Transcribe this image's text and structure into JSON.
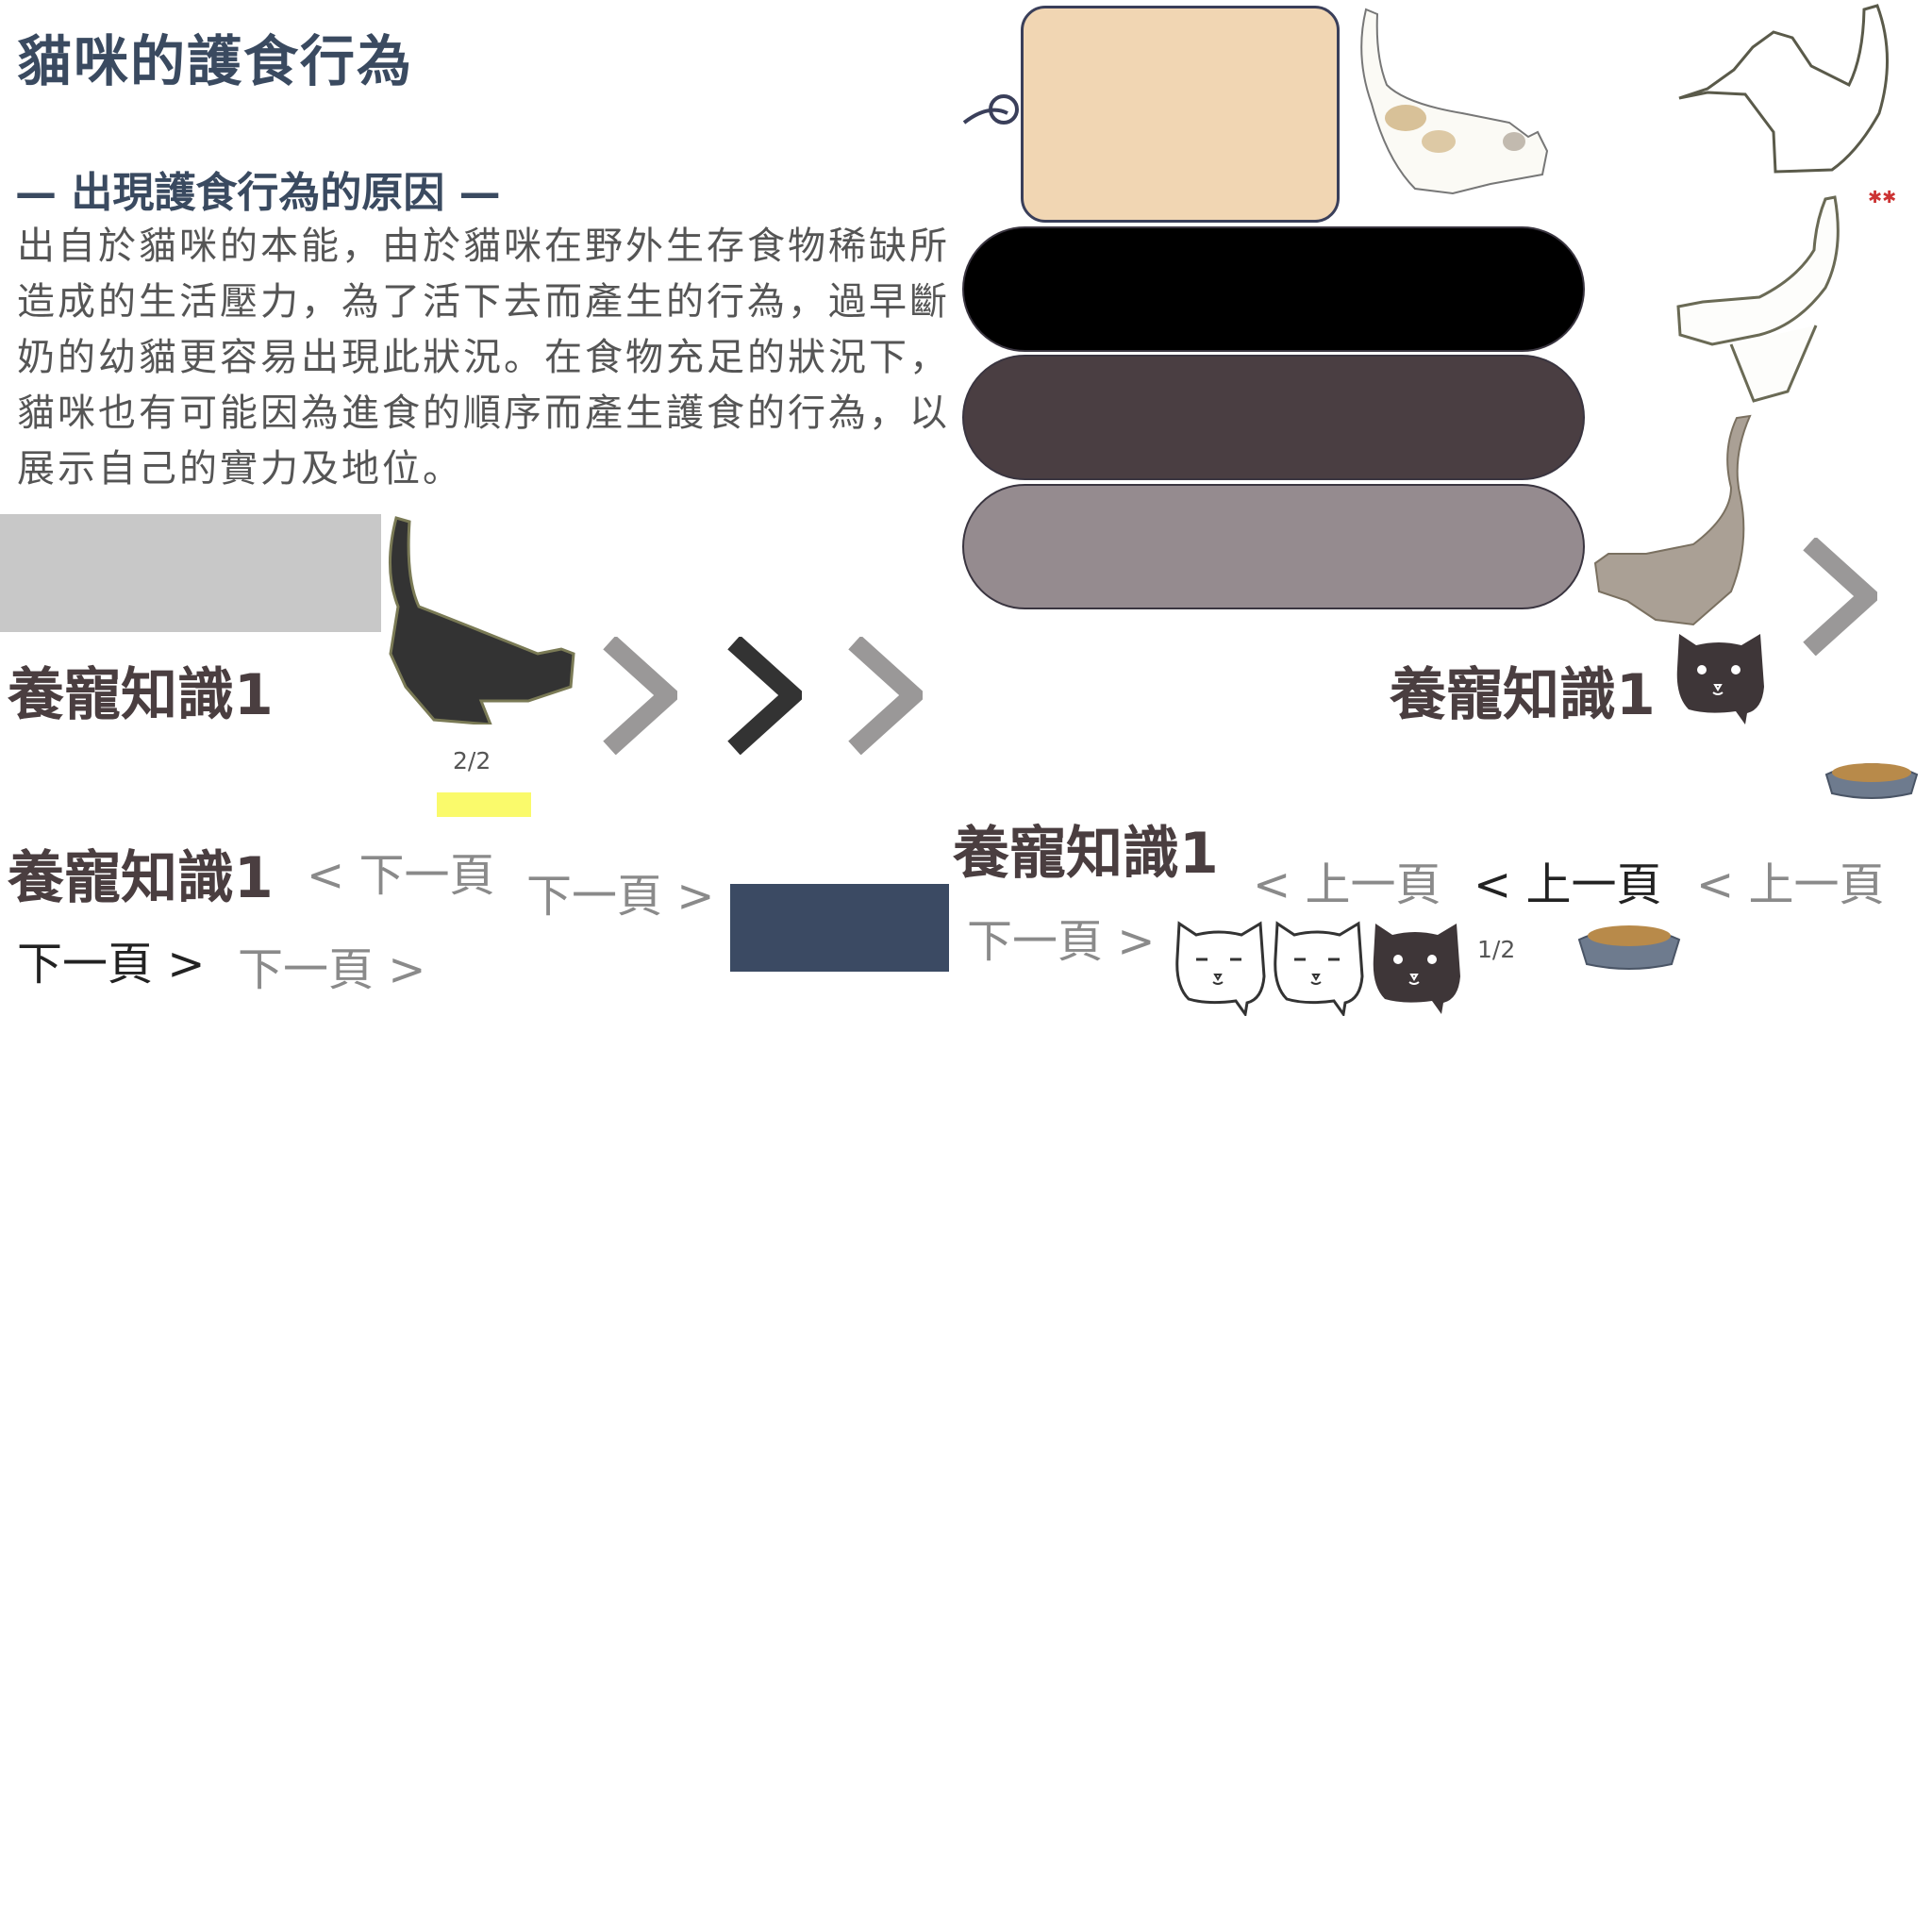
{
  "title": "貓咪的護食行為",
  "section_heading": "— 出現護食行為的原因 —",
  "body_lines": [
    "出自於貓咪的本能，由於貓咪在野外生存食物稀缺所",
    "造成的生活壓力，為了活下去而產生的行為，過早斷",
    "奶的幼貓更容易出現此狀況。在食物充足的狀況下，",
    "貓咪也有可能因為進食的順序而產生護食的行為，以",
    "展示自己的實力及地位。"
  ],
  "knowledge_title": "養寵知識1",
  "nav": {
    "prev_left": "< 下一頁",
    "next_grey": "下一頁 >",
    "next_dark": "下一頁 >",
    "next_light": "下一頁 >",
    "next_right": "下一頁 >",
    "prev_grey": "< 上一頁",
    "prev_dark": "< 上一頁",
    "prev_light": "< 上一頁"
  },
  "page_indicators": {
    "left": "2/2",
    "right": "1/2"
  },
  "colors": {
    "title": "#3a4a60",
    "card_fill": "#f1d6b3",
    "pill_black": "#000000",
    "pill_dark": "#4a3e42",
    "pill_grey": "#958b8f",
    "grey_block": "#c8c8c8",
    "yellow_bar": "#fafa6b",
    "navy_block": "#3b4a63",
    "chevron_grey": "#9a9898",
    "chevron_dark": "#333333"
  },
  "icons": [
    "walking-cat-icon",
    "hissing-cat-icon",
    "black-cat-silhouette-icon",
    "grey-cat-icon",
    "cat-face-white-icon",
    "cat-face-black-icon",
    "food-bowl-icon",
    "chevron-right-icon"
  ]
}
